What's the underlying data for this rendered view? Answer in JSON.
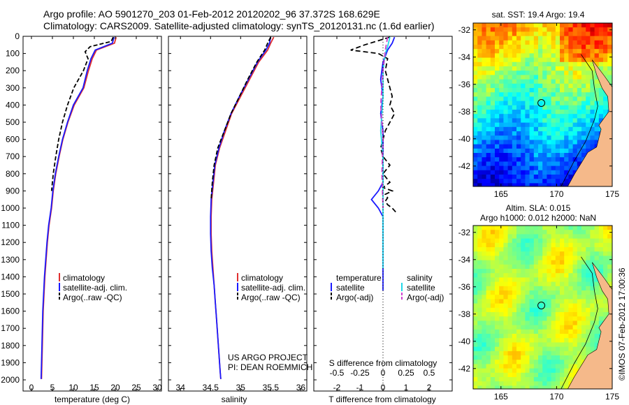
{
  "header": {
    "title_line1": "Argo profile: AO 5901270_203 01-Feb-2012 20120202_96 37.372S 168.629E",
    "title_line2": "Climatology: CARS2009. Satellite-adjusted climatology: synTS_20120131.nc (1.6d earlier)"
  },
  "colors": {
    "climatology": "#e03030",
    "satellite": "#1a1aff",
    "argo": "#000000",
    "sal_satellite": "#22d8e8",
    "sal_argo": "#d040d0",
    "land": "#f5b98a"
  },
  "depth_axis": {
    "ticks": [
      "0",
      "100",
      "200",
      "300",
      "400",
      "500",
      "600",
      "700",
      "800",
      "900",
      "1000",
      "1100",
      "1200",
      "1300",
      "1400",
      "1500",
      "1600",
      "1700",
      "1800",
      "1900",
      "2000"
    ]
  },
  "chart_data": [
    {
      "type": "line",
      "xlabel": "temperature (deg C)",
      "ylabel": "",
      "xlim": [
        -2,
        31
      ],
      "ylim": [
        2050,
        0
      ],
      "xticks": [
        "0",
        "5",
        "10",
        "15",
        "20",
        "25",
        "30"
      ],
      "legend": [
        "climatology",
        "satellite-adj. clim.",
        "Argo(..raw -QC)"
      ],
      "series": [
        {
          "name": "climatology",
          "x": [
            20.2,
            19.8,
            15.5,
            14.5,
            13.6,
            12.5,
            10.2,
            8.7,
            7.5,
            6.6,
            5.8,
            5.2,
            4.8,
            4.2,
            3.8,
            3.5,
            3.2,
            3.0,
            2.8,
            2.7,
            2.6,
            2.5,
            2.4
          ],
          "y": [
            5,
            40,
            80,
            130,
            200,
            300,
            400,
            500,
            600,
            700,
            800,
            900,
            1000,
            1100,
            1200,
            1300,
            1400,
            1500,
            1600,
            1700,
            1800,
            1900,
            1995
          ]
        },
        {
          "name": "satellite-adj. clim.",
          "x": [
            19.7,
            19.3,
            15.2,
            14.2,
            13.3,
            12.3,
            10.0,
            8.6,
            7.4,
            6.5,
            5.7,
            5.1,
            4.7,
            4.1,
            3.7,
            3.4,
            3.1,
            2.9,
            2.7,
            2.6,
            2.5,
            2.4,
            2.3
          ],
          "y": [
            5,
            40,
            80,
            130,
            200,
            300,
            400,
            500,
            600,
            700,
            800,
            900,
            1000,
            1100,
            1200,
            1300,
            1400,
            1500,
            1600,
            1700,
            1800,
            1900,
            1995
          ]
        },
        {
          "name": "Argo(..raw -QC)",
          "x": [
            19.5,
            19.0,
            14.0,
            12.8,
            13.5,
            12.4,
            10.1,
            8.6,
            7.4,
            6.5,
            5.8,
            5.2,
            4.8
          ],
          "y": [
            5,
            30,
            60,
            90,
            130,
            200,
            300,
            400,
            500,
            600,
            700,
            800,
            900
          ]
        }
      ]
    },
    {
      "type": "line",
      "xlabel": "salinity",
      "ylabel": "",
      "xlim": [
        33.8,
        36.1
      ],
      "ylim": [
        2050,
        0
      ],
      "xticks": [
        "34",
        "34.5",
        "35",
        "35.5",
        "36"
      ],
      "legend": [
        "climatology",
        "satellite-adj. clim.",
        "Argo(..raw -QC)"
      ],
      "annotation_line1": "US ARGO PROJECT",
      "annotation_line2": "PI: DEAN ROEMMICH",
      "series": [
        {
          "name": "climatology",
          "x": [
            35.55,
            35.5,
            35.45,
            35.3,
            35.15,
            35.0,
            34.85,
            34.75,
            34.65,
            34.58,
            34.55,
            34.52,
            34.51,
            34.51,
            34.52,
            34.54,
            34.56,
            34.58,
            34.6,
            34.62,
            34.64,
            34.66,
            34.67
          ],
          "y": [
            5,
            40,
            80,
            150,
            250,
            350,
            450,
            550,
            650,
            750,
            850,
            950,
            1050,
            1150,
            1250,
            1350,
            1450,
            1550,
            1650,
            1750,
            1850,
            1950,
            1995
          ]
        },
        {
          "name": "satellite-adj. clim.",
          "x": [
            35.5,
            35.48,
            35.42,
            35.28,
            35.13,
            34.98,
            34.84,
            34.73,
            34.64,
            34.57,
            34.54,
            34.51,
            34.5,
            34.5,
            34.51,
            34.53,
            34.56,
            34.58,
            34.6,
            34.62,
            34.64,
            34.66,
            34.67
          ],
          "y": [
            5,
            40,
            80,
            150,
            250,
            350,
            450,
            550,
            650,
            750,
            850,
            950,
            1050,
            1150,
            1250,
            1350,
            1450,
            1550,
            1650,
            1750,
            1850,
            1950,
            1995
          ]
        },
        {
          "name": "Argo(..raw -QC)",
          "x": [
            35.5,
            35.45,
            35.4,
            35.27,
            35.12,
            34.98,
            34.84,
            34.73,
            34.62,
            34.56,
            34.53,
            34.51
          ],
          "y": [
            5,
            40,
            80,
            150,
            250,
            350,
            450,
            550,
            650,
            750,
            850,
            950
          ]
        }
      ]
    },
    {
      "type": "line",
      "xlabel": "T difference from climatology",
      "xlabel_top": "S difference from climatology",
      "xlim": [
        -3,
        3
      ],
      "ylim": [
        2050,
        0
      ],
      "xticks": [
        "-2",
        "-1",
        "0",
        "1",
        "2"
      ],
      "xticks_top": [
        "-0.5",
        "-0.25",
        "0",
        "0.25",
        "0.5"
      ],
      "legend": [
        "temperature",
        "satellite",
        "Argo(-adj)",
        "salinity",
        "satellite",
        "Argo(-adj)"
      ],
      "series": [
        {
          "name": "satellite",
          "x": [
            0.5,
            0.4,
            0.2,
            0.0,
            -0.1,
            0.0,
            -0.1,
            0.0,
            0.0,
            0.0,
            0.0,
            -0.2,
            -0.5,
            -0.2,
            0.0,
            0.0,
            0.0,
            0.0
          ],
          "y": [
            5,
            40,
            80,
            150,
            250,
            350,
            450,
            550,
            650,
            750,
            850,
            900,
            950,
            1000,
            1050,
            1150,
            1300,
            1480
          ]
        },
        {
          "name": "Argo(-adj)",
          "x": [
            0.3,
            -0.8,
            -1.4,
            -0.2,
            0.2,
            0.1,
            0.4,
            0.3,
            0.5,
            0.3,
            0.1,
            0.0,
            -0.1,
            0.0,
            0.3,
            0.0,
            0.3,
            0.0,
            0.4,
            0.1,
            0.2,
            0.1,
            0.2,
            0.4,
            0.6
          ],
          "y": [
            5,
            50,
            80,
            100,
            130,
            200,
            350,
            400,
            450,
            500,
            550,
            600,
            650,
            700,
            750,
            800,
            850,
            880,
            900,
            920,
            940,
            960,
            980,
            1000,
            1030
          ]
        },
        {
          "name": "satellite",
          "x": [
            0.3,
            0.2,
            0.1,
            0.0,
            0.0,
            -0.05,
            -0.1,
            0.0,
            0.0,
            0.0,
            0.0
          ],
          "y": [
            5,
            60,
            100,
            200,
            350,
            450,
            550,
            700,
            900,
            1100,
            1350
          ]
        },
        {
          "name": "Argo(-adj)",
          "x": [
            0.2,
            0.1,
            0.0,
            -0.1,
            0.0,
            -0.05,
            0.0
          ],
          "y": [
            5,
            80,
            200,
            400,
            600,
            800,
            1000
          ]
        }
      ]
    },
    {
      "type": "heatmap",
      "title": "sat. SST: 19.4  Argo: 19.4",
      "xticks": [
        "165",
        "170",
        "175"
      ],
      "yticks": [
        "-32",
        "-34",
        "-36",
        "-38",
        "-40",
        "-42"
      ],
      "xlim": [
        162.5,
        175
      ],
      "ylim": [
        -43.5,
        -31.5
      ],
      "marker": {
        "lon": 168.629,
        "lat": -37.372
      }
    },
    {
      "type": "heatmap",
      "title_line1": "Altim. SLA: 0.015",
      "title_line2": "Argo h1000: 0.012 h2000: NaN",
      "xticks": [
        "165",
        "170",
        "175"
      ],
      "yticks": [
        "-32",
        "-34",
        "-36",
        "-38",
        "-40",
        "-42"
      ],
      "xlim": [
        162.5,
        175
      ],
      "ylim": [
        -43.5,
        -31.5
      ],
      "marker": {
        "lon": 168.629,
        "lat": -37.372
      },
      "side_label": "©IMOS 07-Feb-2012 17:00:36"
    }
  ]
}
